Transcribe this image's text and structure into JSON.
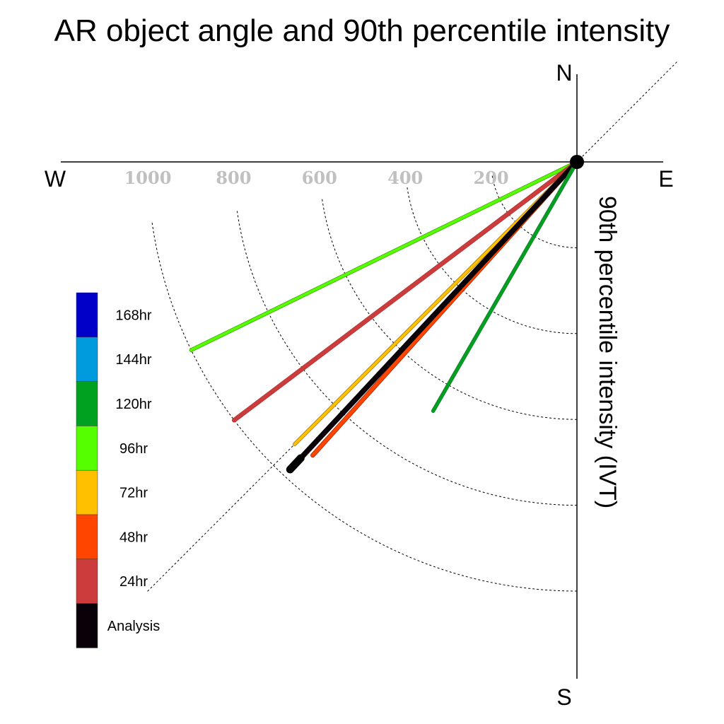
{
  "chart_data": {
    "type": "polar-line",
    "title": "AR object angle and 90th percentile intensity",
    "ylabel": "90th percentile intensity (IVT)",
    "compass": {
      "north": "N",
      "south": "S",
      "east": "E",
      "west": "W"
    },
    "radial_ticks": [
      200,
      400,
      600,
      800,
      1000
    ],
    "radial_tick_labels": [
      "200",
      "400",
      "600",
      "800",
      "1000"
    ],
    "rlim": [
      0,
      1000
    ],
    "grid": true,
    "legend_position": "left",
    "legend": [
      {
        "label": "168hr",
        "color": "#0000c8"
      },
      {
        "label": "144hr",
        "color": "#009bdc"
      },
      {
        "label": "120hr",
        "color": "#00a020"
      },
      {
        "label": "96hr",
        "color": "#55ff00"
      },
      {
        "label": "72hr",
        "color": "#ffc000"
      },
      {
        "label": "48hr",
        "color": "#ff4500"
      },
      {
        "label": "24hr",
        "color": "#cc3c3c"
      },
      {
        "label": "Analysis",
        "color": "#0a0008"
      }
    ],
    "series": [
      {
        "name": "96hr",
        "angle_deg_from_north": 244,
        "intensity": 1000,
        "color": "#55ff00",
        "outline": "#3aa000",
        "width": 4
      },
      {
        "name": "24hr",
        "angle_deg_from_north": 233,
        "intensity": 1000,
        "color": "#cc3c3c",
        "outline": "#b03030",
        "width": 5
      },
      {
        "name": "72hr",
        "angle_deg_from_north": 225,
        "intensity": 930,
        "color": "#ffc000",
        "outline": "#a07000",
        "width": 4
      },
      {
        "name": "48hr",
        "angle_deg_from_north": 222,
        "intensity": 920,
        "color": "#ff4500",
        "outline": "#a02000",
        "width": 5
      },
      {
        "name": "Analysis",
        "angle_deg_from_north": 223,
        "intensity": 980,
        "color": "#0a0008",
        "outline": "#000000",
        "width": 6
      },
      {
        "name": "120hr",
        "angle_deg_from_north": 210,
        "intensity": 670,
        "color": "#00a020",
        "outline": "#1c7a2e",
        "width": 4
      }
    ]
  }
}
